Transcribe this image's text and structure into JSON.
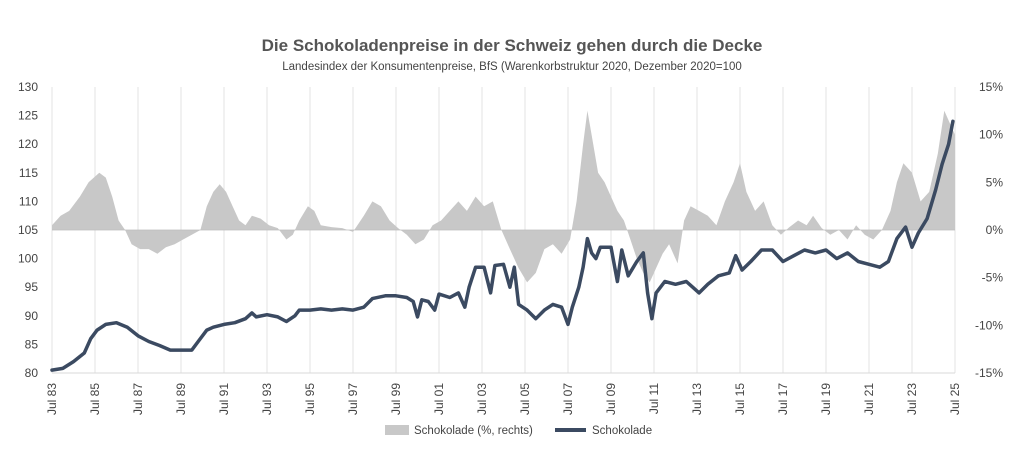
{
  "chart_data": {
    "type": "line",
    "title": "Die Schokoladenpreise in der Schweiz gehen durch die Decke",
    "subtitle": "Landesindex der Konsumentenpreise, BfS (Warenkorbstruktur  2020, Dezember 2020=100",
    "xlabel": "",
    "ylabel": "",
    "x_start": 1983.5,
    "x_end": 2025.5,
    "x_ticks": [
      {
        "value": 1983.5,
        "label": "Jul 83"
      },
      {
        "value": 1985.5,
        "label": "Jul 85"
      },
      {
        "value": 1987.5,
        "label": "Jul 87"
      },
      {
        "value": 1989.5,
        "label": "Jul 89"
      },
      {
        "value": 1991.5,
        "label": "Jul 91"
      },
      {
        "value": 1993.5,
        "label": "Jul 93"
      },
      {
        "value": 1995.5,
        "label": "Jul 95"
      },
      {
        "value": 1997.5,
        "label": "Jul 97"
      },
      {
        "value": 1999.5,
        "label": "Jul 99"
      },
      {
        "value": 2001.5,
        "label": "Jul 01"
      },
      {
        "value": 2003.5,
        "label": "Jul 03"
      },
      {
        "value": 2005.5,
        "label": "Jul 05"
      },
      {
        "value": 2007.5,
        "label": "Jul 07"
      },
      {
        "value": 2009.5,
        "label": "Jul 09"
      },
      {
        "value": 2011.5,
        "label": "Jul 11"
      },
      {
        "value": 2013.5,
        "label": "Jul 13"
      },
      {
        "value": 2015.5,
        "label": "Jul 15"
      },
      {
        "value": 2017.5,
        "label": "Jul 17"
      },
      {
        "value": 2019.5,
        "label": "Jul 19"
      },
      {
        "value": 2021.5,
        "label": "Jul 21"
      },
      {
        "value": 2023.5,
        "label": "Jul 23"
      },
      {
        "value": 2025.5,
        "label": "Jul 25"
      }
    ],
    "y_left": {
      "min": 80,
      "max": 130,
      "step": 5,
      "ticks": [
        "80",
        "85",
        "90",
        "95",
        "100",
        "105",
        "110",
        "115",
        "120",
        "125",
        "130"
      ]
    },
    "y_right": {
      "min": -15,
      "max": 15,
      "step": 5,
      "ticks": [
        "-15%",
        "-10%",
        "-5%",
        "0%",
        "5%",
        "10%",
        "15%"
      ]
    },
    "grid": "vertical",
    "legend_position": "bottom-center",
    "series": [
      {
        "name": "Schokolade (%, rechts)",
        "type": "area",
        "axis": "right",
        "color": "#c8c8c8",
        "points": [
          [
            1983.5,
            0.5
          ],
          [
            1983.9,
            1.5
          ],
          [
            1984.3,
            2.0
          ],
          [
            1984.8,
            3.5
          ],
          [
            1985.2,
            5.0
          ],
          [
            1985.7,
            6.0
          ],
          [
            1986.0,
            5.5
          ],
          [
            1986.3,
            3.5
          ],
          [
            1986.6,
            1.0
          ],
          [
            1986.9,
            0.0
          ],
          [
            1987.2,
            -1.5
          ],
          [
            1987.6,
            -2.0
          ],
          [
            1988.0,
            -2.0
          ],
          [
            1988.4,
            -2.5
          ],
          [
            1988.8,
            -1.8
          ],
          [
            1989.2,
            -1.5
          ],
          [
            1989.6,
            -1.0
          ],
          [
            1990.0,
            -0.5
          ],
          [
            1990.4,
            0.0
          ],
          [
            1990.7,
            2.5
          ],
          [
            1991.0,
            4.0
          ],
          [
            1991.3,
            4.8
          ],
          [
            1991.6,
            4.0
          ],
          [
            1991.9,
            2.5
          ],
          [
            1992.2,
            1.0
          ],
          [
            1992.5,
            0.5
          ],
          [
            1992.8,
            1.5
          ],
          [
            1993.2,
            1.2
          ],
          [
            1993.6,
            0.5
          ],
          [
            1994.0,
            0.2
          ],
          [
            1994.4,
            -1.0
          ],
          [
            1994.7,
            -0.5
          ],
          [
            1995.0,
            1.0
          ],
          [
            1995.4,
            2.5
          ],
          [
            1995.7,
            2.0
          ],
          [
            1996.0,
            0.5
          ],
          [
            1996.5,
            0.3
          ],
          [
            1997.0,
            0.2
          ],
          [
            1997.5,
            -0.2
          ],
          [
            1998.0,
            1.5
          ],
          [
            1998.4,
            3.0
          ],
          [
            1998.8,
            2.5
          ],
          [
            1999.2,
            1.0
          ],
          [
            1999.6,
            0.2
          ],
          [
            2000.0,
            -0.5
          ],
          [
            2000.4,
            -1.5
          ],
          [
            2000.8,
            -1.0
          ],
          [
            2001.2,
            0.5
          ],
          [
            2001.6,
            1.0
          ],
          [
            2002.0,
            2.0
          ],
          [
            2002.4,
            3.0
          ],
          [
            2002.8,
            2.0
          ],
          [
            2003.2,
            3.5
          ],
          [
            2003.6,
            2.5
          ],
          [
            2004.0,
            3.0
          ],
          [
            2004.4,
            0.0
          ],
          [
            2004.8,
            -2.0
          ],
          [
            2005.2,
            -4.0
          ],
          [
            2005.6,
            -5.5
          ],
          [
            2006.0,
            -4.5
          ],
          [
            2006.4,
            -2.0
          ],
          [
            2006.8,
            -1.5
          ],
          [
            2007.2,
            -2.5
          ],
          [
            2007.6,
            -1.0
          ],
          [
            2007.9,
            3.0
          ],
          [
            2008.2,
            9.0
          ],
          [
            2008.4,
            12.5
          ],
          [
            2008.6,
            10.0
          ],
          [
            2008.9,
            6.0
          ],
          [
            2009.2,
            5.0
          ],
          [
            2009.5,
            3.5
          ],
          [
            2009.8,
            2.0
          ],
          [
            2010.1,
            1.0
          ],
          [
            2010.4,
            -1.0
          ],
          [
            2010.7,
            -3.0
          ],
          [
            2011.0,
            -4.5
          ],
          [
            2011.3,
            -5.5
          ],
          [
            2011.6,
            -4.0
          ],
          [
            2011.9,
            -2.5
          ],
          [
            2012.2,
            -1.5
          ],
          [
            2012.6,
            -3.5
          ],
          [
            2012.9,
            1.0
          ],
          [
            2013.2,
            2.5
          ],
          [
            2013.6,
            2.0
          ],
          [
            2014.0,
            1.5
          ],
          [
            2014.4,
            0.5
          ],
          [
            2014.8,
            3.0
          ],
          [
            2015.2,
            5.0
          ],
          [
            2015.5,
            7.0
          ],
          [
            2015.8,
            4.0
          ],
          [
            2016.2,
            2.0
          ],
          [
            2016.6,
            3.0
          ],
          [
            2017.0,
            0.5
          ],
          [
            2017.4,
            -0.5
          ],
          [
            2017.8,
            0.3
          ],
          [
            2018.2,
            1.0
          ],
          [
            2018.6,
            0.5
          ],
          [
            2018.9,
            1.5
          ],
          [
            2019.3,
            0.2
          ],
          [
            2019.7,
            -0.5
          ],
          [
            2020.1,
            0.0
          ],
          [
            2020.5,
            -1.0
          ],
          [
            2020.9,
            0.5
          ],
          [
            2021.3,
            -0.5
          ],
          [
            2021.7,
            -1.0
          ],
          [
            2022.1,
            0.0
          ],
          [
            2022.5,
            2.0
          ],
          [
            2022.8,
            5.0
          ],
          [
            2023.1,
            7.0
          ],
          [
            2023.5,
            6.0
          ],
          [
            2023.9,
            3.0
          ],
          [
            2024.3,
            4.0
          ],
          [
            2024.7,
            8.0
          ],
          [
            2025.0,
            12.5
          ],
          [
            2025.3,
            11.0
          ],
          [
            2025.5,
            10.0
          ]
        ]
      },
      {
        "name": "Schokolade",
        "type": "line",
        "axis": "left",
        "color": "#3b4a61",
        "points": [
          [
            1983.5,
            80.5
          ],
          [
            1984.0,
            80.8
          ],
          [
            1984.5,
            82.0
          ],
          [
            1985.0,
            83.5
          ],
          [
            1985.3,
            86.0
          ],
          [
            1985.6,
            87.5
          ],
          [
            1986.0,
            88.5
          ],
          [
            1986.5,
            88.8
          ],
          [
            1987.0,
            88.0
          ],
          [
            1987.5,
            86.5
          ],
          [
            1988.0,
            85.5
          ],
          [
            1988.5,
            84.8
          ],
          [
            1989.0,
            84.0
          ],
          [
            1989.5,
            84.0
          ],
          [
            1990.0,
            84.0
          ],
          [
            1990.3,
            85.5
          ],
          [
            1990.7,
            87.5
          ],
          [
            1991.0,
            88.0
          ],
          [
            1991.5,
            88.5
          ],
          [
            1992.0,
            88.8
          ],
          [
            1992.5,
            89.5
          ],
          [
            1992.8,
            90.5
          ],
          [
            1993.0,
            89.8
          ],
          [
            1993.5,
            90.2
          ],
          [
            1994.0,
            89.8
          ],
          [
            1994.4,
            89.0
          ],
          [
            1994.8,
            90.0
          ],
          [
            1995.0,
            91.0
          ],
          [
            1995.5,
            91.0
          ],
          [
            1996.0,
            91.2
          ],
          [
            1996.5,
            91.0
          ],
          [
            1997.0,
            91.2
          ],
          [
            1997.5,
            91.0
          ],
          [
            1998.0,
            91.5
          ],
          [
            1998.4,
            93.0
          ],
          [
            1999.0,
            93.5
          ],
          [
            1999.5,
            93.5
          ],
          [
            2000.0,
            93.2
          ],
          [
            2000.3,
            92.5
          ],
          [
            2000.5,
            89.8
          ],
          [
            2000.7,
            92.8
          ],
          [
            2001.0,
            92.5
          ],
          [
            2001.3,
            91.0
          ],
          [
            2001.5,
            93.8
          ],
          [
            2002.0,
            93.2
          ],
          [
            2002.4,
            94.0
          ],
          [
            2002.7,
            91.5
          ],
          [
            2002.9,
            95.0
          ],
          [
            2003.2,
            98.5
          ],
          [
            2003.6,
            98.5
          ],
          [
            2003.9,
            94.0
          ],
          [
            2004.1,
            98.8
          ],
          [
            2004.5,
            99.0
          ],
          [
            2004.8,
            95.0
          ],
          [
            2005.0,
            98.5
          ],
          [
            2005.2,
            92.0
          ],
          [
            2005.6,
            91.0
          ],
          [
            2006.0,
            89.5
          ],
          [
            2006.4,
            91.0
          ],
          [
            2006.8,
            92.0
          ],
          [
            2007.2,
            91.5
          ],
          [
            2007.5,
            88.5
          ],
          [
            2007.7,
            91.5
          ],
          [
            2008.0,
            95.0
          ],
          [
            2008.2,
            98.5
          ],
          [
            2008.4,
            103.5
          ],
          [
            2008.6,
            101.0
          ],
          [
            2008.8,
            100.0
          ],
          [
            2009.0,
            102.0
          ],
          [
            2009.5,
            102.0
          ],
          [
            2009.8,
            96.0
          ],
          [
            2010.0,
            101.5
          ],
          [
            2010.3,
            97.0
          ],
          [
            2010.7,
            99.5
          ],
          [
            2011.0,
            101.0
          ],
          [
            2011.2,
            94.0
          ],
          [
            2011.4,
            89.5
          ],
          [
            2011.6,
            94.0
          ],
          [
            2012.0,
            96.0
          ],
          [
            2012.5,
            95.5
          ],
          [
            2013.0,
            96.0
          ],
          [
            2013.3,
            95.0
          ],
          [
            2013.6,
            94.0
          ],
          [
            2014.0,
            95.5
          ],
          [
            2014.5,
            97.0
          ],
          [
            2015.0,
            97.5
          ],
          [
            2015.3,
            100.5
          ],
          [
            2015.6,
            98.0
          ],
          [
            2016.0,
            99.5
          ],
          [
            2016.5,
            101.5
          ],
          [
            2017.0,
            101.5
          ],
          [
            2017.5,
            99.5
          ],
          [
            2018.0,
            100.5
          ],
          [
            2018.5,
            101.5
          ],
          [
            2019.0,
            101.0
          ],
          [
            2019.5,
            101.5
          ],
          [
            2020.0,
            100.0
          ],
          [
            2020.5,
            101.0
          ],
          [
            2021.0,
            99.5
          ],
          [
            2021.5,
            99.0
          ],
          [
            2022.0,
            98.5
          ],
          [
            2022.4,
            99.5
          ],
          [
            2022.8,
            103.5
          ],
          [
            2023.2,
            105.5
          ],
          [
            2023.5,
            102.0
          ],
          [
            2023.8,
            104.5
          ],
          [
            2024.2,
            107.0
          ],
          [
            2024.6,
            112.0
          ],
          [
            2024.9,
            116.5
          ],
          [
            2025.2,
            120.0
          ],
          [
            2025.4,
            124.0
          ]
        ]
      }
    ]
  },
  "legend": {
    "area_label": "Schokolade (%, rechts)",
    "line_label": "Schokolade"
  }
}
